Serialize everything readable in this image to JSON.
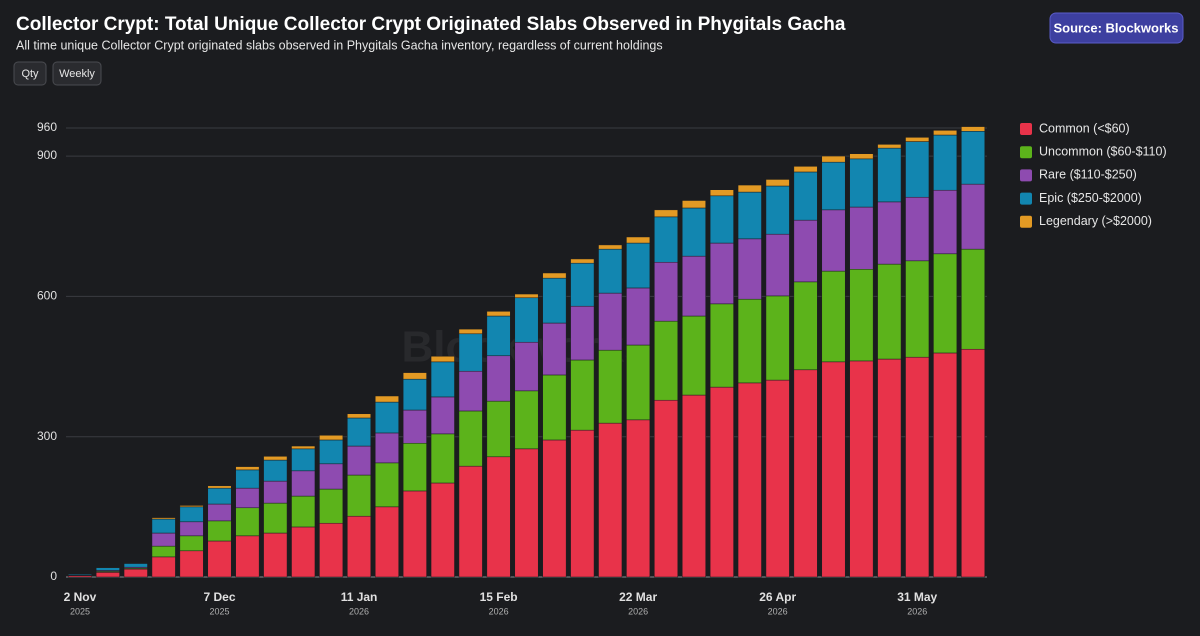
{
  "header": {
    "title": "Collector Crypt: Total Unique Collector Crypt Originated Slabs Observed in Phygitals Gacha",
    "subtitle": "All time unique Collector Crypt originated slabs observed in Phygitals Gacha inventory, regardless of current holdings",
    "buttons": [
      "Qty",
      "Weekly"
    ],
    "source": "Source: Blockworks"
  },
  "watermark": "Blockworks",
  "chart_data": {
    "type": "stacked-bar",
    "categories": [
      "2 Nov",
      null,
      null,
      null,
      null,
      "7 Dec",
      null,
      null,
      null,
      null,
      "11 Jan",
      null,
      null,
      null,
      null,
      "15 Feb",
      null,
      null,
      null,
      null,
      "22 Mar",
      null,
      null,
      null,
      null,
      "26 Apr",
      null,
      null,
      null,
      null,
      "31 May",
      null,
      null
    ],
    "category_years": [
      "2025",
      null,
      null,
      null,
      null,
      "2025",
      null,
      null,
      null,
      null,
      "2026",
      null,
      null,
      null,
      null,
      "2026",
      null,
      null,
      null,
      null,
      "2026",
      null,
      null,
      null,
      null,
      "2026",
      null,
      null,
      null,
      null,
      "2026",
      null,
      null
    ],
    "series": [
      {
        "name": "Common (<$60)",
        "color": "#e8334a",
        "values": [
          3,
          10,
          17,
          43,
          56,
          77,
          88,
          94,
          107,
          115,
          130,
          150,
          184,
          201,
          237,
          257,
          274,
          293,
          314,
          329,
          336,
          378,
          389,
          406,
          415,
          421,
          443,
          460,
          462,
          466,
          470,
          479,
          487
        ]
      },
      {
        "name": "Uncommon ($60-$110)",
        "color": "#5cb31b",
        "values": [
          0,
          2,
          2,
          23,
          32,
          43,
          60,
          64,
          66,
          73,
          88,
          94,
          102,
          105,
          118,
          119,
          124,
          139,
          150,
          156,
          160,
          169,
          169,
          178,
          179,
          180,
          188,
          194,
          196,
          203,
          206,
          212,
          214
        ]
      },
      {
        "name": "Rare ($110-$250)",
        "color": "#8e4bb0",
        "values": [
          1,
          2,
          2,
          28,
          30,
          36,
          42,
          47,
          54,
          54,
          62,
          64,
          71,
          79,
          85,
          97,
          104,
          111,
          115,
          122,
          122,
          126,
          128,
          130,
          129,
          132,
          132,
          131,
          133,
          133,
          136,
          136,
          139
        ]
      },
      {
        "name": "Epic ($250-$2000)",
        "color": "#1286b0",
        "values": [
          2,
          6,
          8,
          30,
          32,
          34,
          39,
          45,
          47,
          51,
          60,
          66,
          66,
          75,
          80,
          85,
          95,
          96,
          92,
          94,
          96,
          97,
          103,
          101,
          100,
          103,
          103,
          102,
          103,
          115,
          119,
          118,
          113
        ]
      },
      {
        "name": "Legendary (>$2000)",
        "color": "#e39a24",
        "values": [
          0,
          1,
          1,
          3,
          3,
          5,
          7,
          8,
          6,
          10,
          9,
          13,
          14,
          12,
          10,
          10,
          8,
          11,
          9,
          9,
          13,
          15,
          16,
          13,
          15,
          14,
          12,
          13,
          11,
          8,
          9,
          10,
          10
        ]
      }
    ],
    "ylim": [
      0,
      960
    ],
    "yticks": [
      0,
      300,
      600,
      900,
      960
    ],
    "grid": true,
    "legend": "right"
  }
}
